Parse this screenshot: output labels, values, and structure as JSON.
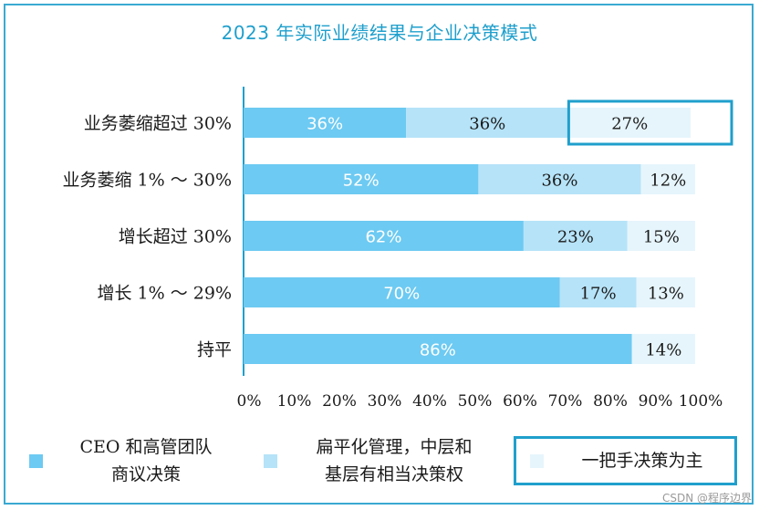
{
  "title": "2023 年实际业绩结果与企业决策模式",
  "colors": {
    "series1": "#6dcaf2",
    "series2": "#b6e3f8",
    "series3": "#e6f5fc",
    "highlight": "#1f9fcc"
  },
  "chart_data": {
    "type": "bar",
    "orientation": "horizontal",
    "stacked": true,
    "categories": [
      "业务萎缩超过 30%",
      "业务萎缩 1% ～ 30%",
      "增长超过 30%",
      "增长 1% ～ 29%",
      "持平"
    ],
    "series": [
      {
        "name": "CEO 和高管团队商议决策",
        "values": [
          36,
          52,
          62,
          70,
          86
        ]
      },
      {
        "name": "扁平化管理，中层和基层有相当决策权",
        "values": [
          36,
          36,
          23,
          17,
          0
        ]
      },
      {
        "name": "一把手决策为主",
        "values": [
          27,
          12,
          15,
          13,
          14
        ]
      }
    ],
    "data_labels": [
      [
        "36%",
        "36%",
        "27%"
      ],
      [
        "52%",
        "36%",
        "12%"
      ],
      [
        "62%",
        "23%",
        "15%"
      ],
      [
        "70%",
        "17%",
        "13%"
      ],
      [
        "86%",
        "",
        "14%"
      ]
    ],
    "x_ticks": [
      "0%",
      "10%",
      "20%",
      "30%",
      "40%",
      "50%",
      "60%",
      "70%",
      "80%",
      "90%",
      "100%"
    ],
    "xlim": [
      0,
      100
    ],
    "highlighted": {
      "category": "业务萎缩超过 30%",
      "series": "一把手决策为主"
    },
    "legend_position": "bottom",
    "grid": false
  },
  "legend": [
    {
      "line1": "CEO 和高管团队",
      "line2": "商议决策"
    },
    {
      "line1": "扁平化管理，中层和",
      "line2": "基层有相当决策权"
    },
    {
      "line1": "一把手决策为主",
      "line2": ""
    }
  ],
  "watermark": "CSDN @程序边界"
}
